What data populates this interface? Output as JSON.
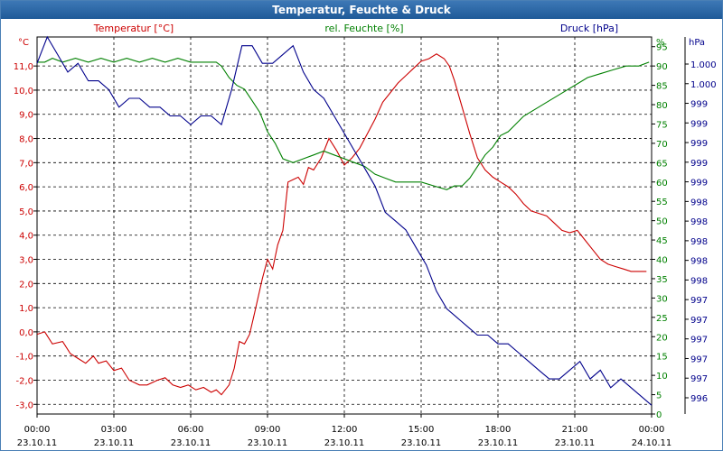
{
  "window": {
    "title": "Temperatur, Feuchte & Druck"
  },
  "chart_data": {
    "type": "line",
    "title": "Temperatur, Feuchte & Druck",
    "x_ticks": [
      {
        "time": "00:00",
        "date": "23.10.11"
      },
      {
        "time": "03:00",
        "date": "23.10.11"
      },
      {
        "time": "06:00",
        "date": "23.10.11"
      },
      {
        "time": "09:00",
        "date": "23.10.11"
      },
      {
        "time": "12:00",
        "date": "23.10.11"
      },
      {
        "time": "15:00",
        "date": "23.10.11"
      },
      {
        "time": "18:00",
        "date": "23.10.11"
      },
      {
        "time": "21:00",
        "date": "23.10.11"
      },
      {
        "time": "00:00",
        "date": "24.10.11"
      }
    ],
    "xlim": [
      0,
      24
    ],
    "axes": {
      "left": {
        "label": "Temperatur [°C]",
        "unit": "°C",
        "color": "#cc0000",
        "ylim": [
          -3.4,
          12.2
        ],
        "ticks": [
          "-3,0",
          "-2,0",
          "-1,0",
          "0,0",
          "1,0",
          "2,0",
          "3,0",
          "4,0",
          "5,0",
          "6,0",
          "7,0",
          "8,0",
          "9,0",
          "10,0",
          "11,0"
        ]
      },
      "right1": {
        "label": "rel. Feuchte [%]",
        "unit": "%",
        "color": "#008000",
        "ylim": [
          0,
          97.5
        ],
        "ticks": [
          "0",
          "5",
          "10",
          "15",
          "20",
          "25",
          "30",
          "35",
          "40",
          "45",
          "50",
          "55",
          "60",
          "65",
          "70",
          "75",
          "80",
          "85",
          "90",
          "95"
        ]
      },
      "right2": {
        "label": "Druck [hPa]",
        "unit": "hPa",
        "color": "#00008b",
        "ylim": [
          995.9,
          1000.2
        ],
        "ticks": [
          "996",
          "997",
          "997",
          "997",
          "997",
          "997",
          "998",
          "998",
          "998",
          "998",
          "998",
          "999",
          "999",
          "999",
          "999",
          "999",
          "1.000",
          "1.000"
        ]
      }
    },
    "grid": true,
    "series": [
      {
        "name": "Temperatur",
        "axis": "left",
        "color": "#cc0000",
        "x": [
          0,
          0.3,
          0.6,
          1,
          1.3,
          1.6,
          1.9,
          2.2,
          2.4,
          2.7,
          3,
          3.3,
          3.6,
          4,
          4.3,
          4.7,
          5,
          5.3,
          5.6,
          5.9,
          6.2,
          6.5,
          6.8,
          7,
          7.2,
          7.5,
          7.7,
          7.9,
          8.1,
          8.3,
          8.5,
          8.8,
          9,
          9.2,
          9.4,
          9.6,
          9.8,
          10,
          10.2,
          10.4,
          10.6,
          10.8,
          11.1,
          11.4,
          11.7,
          12,
          12.3,
          12.6,
          12.9,
          13.2,
          13.5,
          13.8,
          14.1,
          14.4,
          14.7,
          15,
          15.3,
          15.6,
          15.9,
          16.1,
          16.3,
          16.6,
          16.9,
          17.2,
          17.5,
          17.8,
          18.1,
          18.4,
          18.7,
          19,
          19.3,
          19.6,
          19.9,
          20.2,
          20.5,
          20.8,
          21.1,
          21.4,
          21.7,
          22,
          22.3,
          22.6,
          22.9,
          23.2,
          23.5,
          23.8
        ],
        "y": [
          -0.1,
          0,
          -0.5,
          -0.4,
          -0.9,
          -1.1,
          -1.3,
          -1.0,
          -1.3,
          -1.2,
          -1.6,
          -1.5,
          -2.0,
          -2.2,
          -2.2,
          -2.0,
          -1.9,
          -2.2,
          -2.3,
          -2.2,
          -2.4,
          -2.3,
          -2.5,
          -2.4,
          -2.6,
          -2.2,
          -1.5,
          -0.4,
          -0.5,
          -0.1,
          0.8,
          2.2,
          3.0,
          2.6,
          3.6,
          4.2,
          6.2,
          6.3,
          6.4,
          6.1,
          6.8,
          6.7,
          7.2,
          8.0,
          7.5,
          6.9,
          7.2,
          7.6,
          8.2,
          8.8,
          9.5,
          9.9,
          10.3,
          10.6,
          10.9,
          11.2,
          11.3,
          11.5,
          11.3,
          11.0,
          10.4,
          9.3,
          8.2,
          7.2,
          6.7,
          6.4,
          6.2,
          6.0,
          5.7,
          5.3,
          5.0,
          4.9,
          4.8,
          4.5,
          4.2,
          4.1,
          4.2,
          3.8,
          3.4,
          3.0,
          2.8,
          2.7,
          2.6,
          2.5,
          2.5,
          2.5
        ]
      },
      {
        "name": "rel. Feuchte",
        "axis": "right1",
        "color": "#008000",
        "x": [
          0,
          0.3,
          0.6,
          1,
          1.5,
          2,
          2.5,
          3,
          3.5,
          4,
          4.5,
          5,
          5.5,
          6,
          6.5,
          7,
          7.2,
          7.5,
          7.8,
          8.1,
          8.4,
          8.7,
          9,
          9.3,
          9.6,
          10,
          10.4,
          10.8,
          11.2,
          11.6,
          12,
          12.4,
          12.8,
          13.2,
          13.6,
          14,
          14.5,
          15,
          15.5,
          16,
          16.3,
          16.6,
          16.9,
          17.2,
          17.5,
          17.8,
          18.1,
          18.4,
          18.7,
          19,
          19.5,
          20,
          20.5,
          21,
          21.5,
          22,
          22.5,
          23,
          23.5,
          23.9
        ],
        "y": [
          91,
          91,
          92,
          91,
          92,
          91,
          92,
          91,
          92,
          91,
          92,
          91,
          92,
          91,
          91,
          91,
          90,
          87,
          85,
          84,
          81,
          78,
          73,
          70,
          66,
          65,
          66,
          67,
          68,
          67,
          66,
          65,
          64,
          62,
          61,
          60,
          60,
          60,
          59,
          58,
          59,
          59,
          61,
          64,
          67,
          69,
          72,
          73,
          75,
          77,
          79,
          81,
          83,
          85,
          87,
          88,
          89,
          90,
          90,
          91
        ]
      },
      {
        "name": "Druck",
        "axis": "right2",
        "color": "#00008b",
        "x": [
          0,
          0.4,
          0.8,
          1.2,
          1.6,
          2,
          2.4,
          2.8,
          3.2,
          3.6,
          4,
          4.4,
          4.8,
          5.2,
          5.6,
          6,
          6.4,
          6.8,
          7.2,
          7.6,
          8,
          8.4,
          8.8,
          9.2,
          9.6,
          10,
          10.4,
          10.8,
          11.2,
          11.6,
          12,
          12.4,
          12.8,
          13.2,
          13.6,
          14,
          14.4,
          14.8,
          15.2,
          15.6,
          16,
          16.4,
          16.8,
          17.2,
          17.6,
          18,
          18.4,
          18.8,
          19.2,
          19.6,
          20,
          20.4,
          20.8,
          21.2,
          21.6,
          22,
          22.4,
          22.8,
          23.2,
          23.6,
          24
        ],
        "y": [
          999.9,
          1000.2,
          1000.0,
          999.8,
          999.9,
          999.7,
          999.7,
          999.6,
          999.4,
          999.5,
          999.5,
          999.4,
          999.4,
          999.3,
          999.3,
          999.2,
          999.3,
          999.3,
          999.2,
          999.6,
          1000.1,
          1000.1,
          999.9,
          999.9,
          1000.0,
          1000.1,
          999.8,
          999.6,
          999.5,
          999.3,
          999.1,
          998.9,
          998.7,
          998.5,
          998.2,
          998.1,
          998.0,
          997.8,
          997.6,
          997.3,
          997.1,
          997.0,
          996.9,
          996.8,
          996.8,
          996.7,
          996.7,
          996.6,
          996.5,
          996.4,
          996.3,
          996.3,
          996.4,
          996.5,
          996.3,
          996.4,
          996.2,
          996.3,
          996.2,
          996.1,
          996.0
        ]
      }
    ]
  }
}
